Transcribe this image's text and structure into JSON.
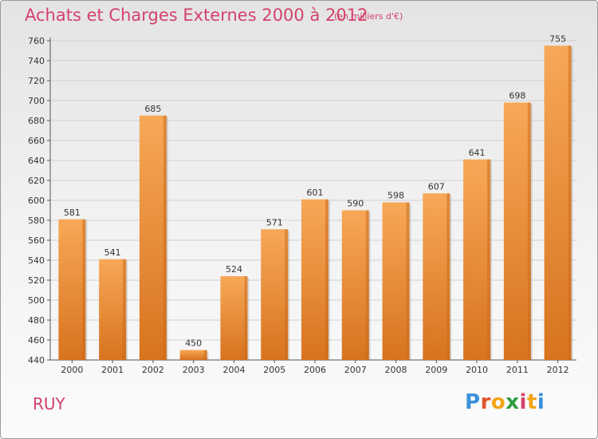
{
  "header": {
    "title": "Achats et Charges Externes 2000 à 2012",
    "unit": "(en milliers d'€)"
  },
  "footer": {
    "city": "RUY",
    "brand": [
      "P",
      "r",
      "o",
      "x",
      "i",
      "t",
      "i"
    ],
    "brand_colors": [
      "#3a8fd9",
      "#e0542d",
      "#f2a516",
      "#2e9e3d",
      "#d4426c",
      "#f2a516",
      "#3a8fd9"
    ]
  },
  "colors": {
    "accent": "#d4426c",
    "bar_top": "#f7a857",
    "bar_bottom": "#d8731e",
    "bar_side": "#c86a1c"
  },
  "chart_data": {
    "type": "bar",
    "title": "Achats et Charges Externes 2000 à 2012",
    "categories": [
      "2000",
      "2001",
      "2002",
      "2003",
      "2004",
      "2005",
      "2006",
      "2007",
      "2008",
      "2009",
      "2010",
      "2011",
      "2012"
    ],
    "values": [
      581,
      541,
      685,
      450,
      524,
      571,
      601,
      590,
      598,
      607,
      641,
      698,
      755
    ],
    "ylim": [
      440,
      760
    ],
    "yticks": [
      440,
      460,
      480,
      500,
      520,
      540,
      560,
      580,
      600,
      620,
      640,
      660,
      680,
      700,
      720,
      740,
      760
    ],
    "grid": true
  }
}
